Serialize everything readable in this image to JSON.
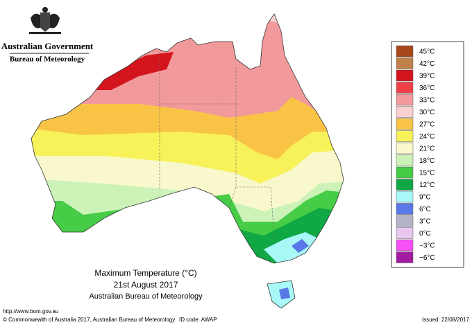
{
  "header": {
    "line1": "Australian Government",
    "line2": "Bureau of Meteorology"
  },
  "legend": [
    {
      "label": "45°C",
      "color": "#a8461c"
    },
    {
      "label": "42°C",
      "color": "#c0814a"
    },
    {
      "label": "39°C",
      "color": "#d4141c"
    },
    {
      "label": "36°C",
      "color": "#f0414a"
    },
    {
      "label": "33°C",
      "color": "#f2999b"
    },
    {
      "label": "30°C",
      "color": "#f9cfcf"
    },
    {
      "label": "27°C",
      "color": "#f9c446"
    },
    {
      "label": "24°C",
      "color": "#f7f25a"
    },
    {
      "label": "21°C",
      "color": "#f8f8cc"
    },
    {
      "label": "18°C",
      "color": "#ccf2b8"
    },
    {
      "label": "15°C",
      "color": "#46cc46"
    },
    {
      "label": "12°C",
      "color": "#10a844"
    },
    {
      "label": "9°C",
      "color": "#a8f8f8"
    },
    {
      "label": "6°C",
      "color": "#5a78e8"
    },
    {
      "label": "3°C",
      "color": "#b4b4c8"
    },
    {
      "label": "0°C",
      "color": "#e8c8f0"
    },
    {
      "label": "−3°C",
      "color": "#f850f8"
    },
    {
      "label": "−6°C",
      "color": "#a01ca0"
    }
  ],
  "map_title": {
    "line1": "Maximum Temperature (°C)",
    "line2": "21st August 2017",
    "line3": "Australian Bureau of Meteorology"
  },
  "footer": {
    "url": "http://www.bom.gov.au",
    "copyright": "© Commonwealth of Australia 2017, Australian Bureau of Meteorology",
    "id_code": "ID code: AWAP",
    "issued": "Issued: 22/08/2017"
  }
}
